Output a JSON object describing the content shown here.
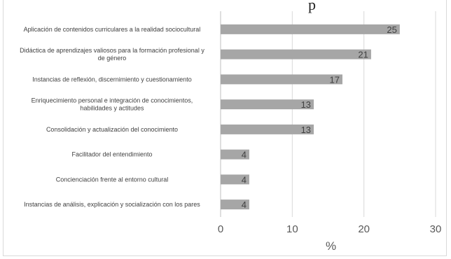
{
  "top_fragment": "p",
  "chart_data": {
    "type": "bar",
    "orientation": "horizontal",
    "categories": [
      "Aplicación de contenidos curriculares a la realidad sociocultural",
      "Didáctica de aprendizajes valiosos para la formación profesional y de género",
      "Instancias de reflexión, discernimiento y cuestionamiento",
      "Enriquecimiento personal e integración de  conocimientos, habilidades y actitudes",
      "Consolidación y actualización del conocimiento",
      "Facilitador del entendimiento",
      "Concienciación frente al entorno cultural",
      "Instancias de análisis, explicación y socialización con los pares"
    ],
    "category_lines": [
      [
        "Aplicación de contenidos curriculares a la realidad sociocultural"
      ],
      [
        "Didáctica de aprendizajes valiosos para la formación profesional y",
        "de género"
      ],
      [
        "Instancias de reflexión, discernimiento y cuestionamiento"
      ],
      [
        "Enriquecimiento personal e integración de  conocimientos,",
        "habilidades y actitudes"
      ],
      [
        "Consolidación y actualización del conocimiento"
      ],
      [
        "Facilitador del entendimiento"
      ],
      [
        "Concienciación frente al entorno cultural"
      ],
      [
        "Instancias de análisis, explicación y socialización con los pares"
      ]
    ],
    "values": [
      25,
      21,
      17,
      13,
      13,
      4,
      4,
      4
    ],
    "data_labels": [
      "25",
      "21",
      "17",
      "13",
      "13",
      "4",
      "4",
      "4"
    ],
    "xlabel": "%",
    "ylabel": "",
    "xlim": [
      0,
      30
    ],
    "xticks": [
      "0",
      "10",
      "20",
      "30"
    ],
    "grid": true,
    "bar_color": "#a6a6a6",
    "grid_color": "#d9d9d9",
    "label_color": "#404040",
    "tick_color": "#595959"
  }
}
